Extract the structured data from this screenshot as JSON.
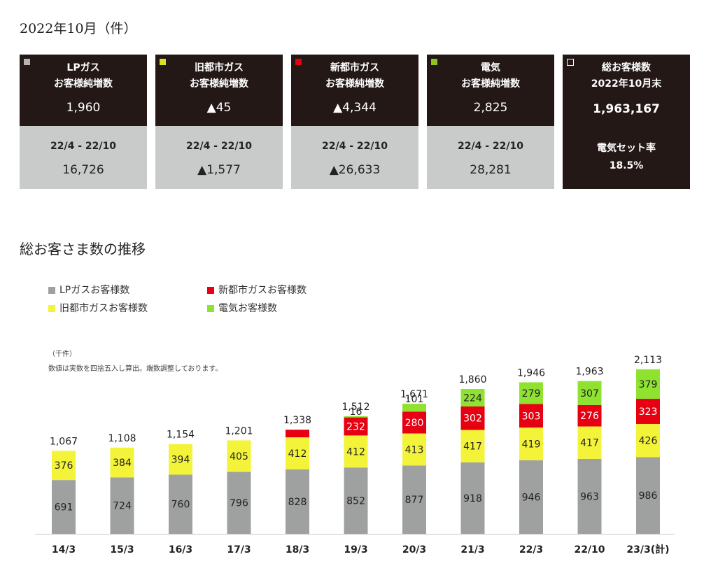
{
  "header": {
    "title": "2022年10月（件）"
  },
  "cards": [
    {
      "key": "lp",
      "color": "#b4b4b5",
      "label_line1": "LPガス",
      "label_line2": "お客様純増数",
      "value": "1,960",
      "period": "22/4 - 22/10",
      "cumulative": "16,726"
    },
    {
      "key": "old_city",
      "color": "#d9e021",
      "label_line1": "旧都市ガス",
      "label_line2": "お客様純増数",
      "value": "▲45",
      "period": "22/4 - 22/10",
      "cumulative": "▲1,577"
    },
    {
      "key": "new_city",
      "color": "#e60012",
      "label_line1": "新都市ガス",
      "label_line2": "お客様純増数",
      "value": "▲4,344",
      "period": "22/4 - 22/10",
      "cumulative": "▲26,633"
    },
    {
      "key": "electric",
      "color": "#8fc31f",
      "label_line1": "電気",
      "label_line2": "お客様純増数",
      "value": "2,825",
      "period": "22/4 - 22/10",
      "cumulative": "28,281"
    }
  ],
  "total_card": {
    "label_line1": "総お客様数",
    "label_line2": "2022年10月末",
    "value": "1,963,167",
    "rate_label": "電気セット率",
    "rate": "18.5%"
  },
  "section": {
    "title": "総お客さま数の推移"
  },
  "legend": [
    {
      "label": "LPガスお客様数",
      "color": "#9fa0a0"
    },
    {
      "label": "新都市ガスお客様数",
      "color": "#e60012"
    },
    {
      "label": "旧都市ガスお客様数",
      "color": "#f3f33a"
    },
    {
      "label": "電気お客様数",
      "color": "#8fe22f"
    }
  ],
  "chart_note": {
    "unit": "（千件）",
    "note": "数値は実数を四捨五入し算出。端数調整しております。"
  },
  "chart_data": {
    "type": "bar",
    "stacked": true,
    "categories": [
      "14/3",
      "15/3",
      "16/3",
      "17/3",
      "18/3",
      "19/3",
      "20/3",
      "21/3",
      "22/3",
      "22/10",
      "23/3(計)"
    ],
    "series": [
      {
        "name": "LPガスお客様数",
        "color": "#9fa0a0",
        "values": [
          691,
          724,
          760,
          796,
          828,
          852,
          877,
          918,
          946,
          963,
          986
        ]
      },
      {
        "name": "旧都市ガスお客様数",
        "color": "#f3f33a",
        "values": [
          376,
          384,
          394,
          405,
          412,
          412,
          413,
          417,
          419,
          417,
          426
        ]
      },
      {
        "name": "新都市ガスお客様数",
        "color": "#e60012",
        "values": [
          null,
          null,
          null,
          null,
          98,
          232,
          280,
          302,
          303,
          276,
          323
        ]
      },
      {
        "name": "電気お客様数",
        "color": "#8fe22f",
        "values": [
          null,
          null,
          null,
          null,
          null,
          16,
          101,
          224,
          279,
          307,
          379
        ]
      }
    ],
    "totals": [
      "1,067",
      "1,108",
      "1,154",
      "1,201",
      "1,338",
      "1,512",
      "1,671",
      "1,860",
      "1,946",
      "1,963",
      "2,113"
    ],
    "ylim": [
      0,
      2113
    ],
    "grid": false
  }
}
